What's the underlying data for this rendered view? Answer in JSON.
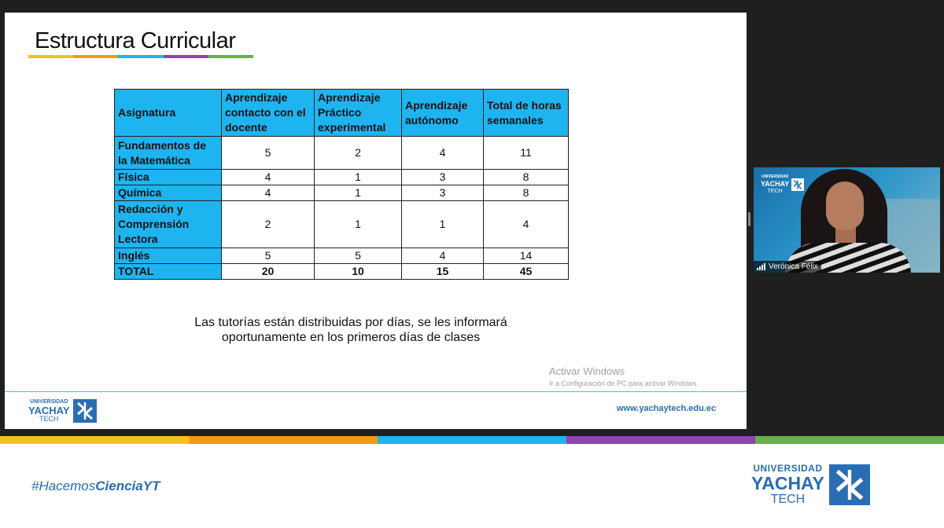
{
  "slide": {
    "title": "Estructura Curricular",
    "title_bar_colors": [
      "#f0c419",
      "#f39c12",
      "#1eb4ef",
      "#8e44ad",
      "#6ab04c"
    ],
    "table": {
      "headers": [
        "Asignatura",
        "Aprendizaje contacto con el docente",
        "Aprendizaje Práctico experimental",
        "Aprendizaje autónomo",
        "Total de horas semanales"
      ],
      "rows": [
        [
          "Fundamentos de la Matemática",
          "5",
          "2",
          "4",
          "11"
        ],
        [
          "Física",
          "4",
          "1",
          "3",
          "8"
        ],
        [
          "Química",
          "4",
          "1",
          "3",
          "8"
        ],
        [
          "Redacción y Comprensión Lectora",
          "2",
          "1",
          "1",
          "4"
        ],
        [
          "Inglés",
          "5",
          "5",
          "4",
          "14"
        ],
        [
          "TOTAL",
          "20",
          "10",
          "15",
          "45"
        ]
      ]
    },
    "note_line1": "Las tutorías están distribuidas por días, se les informará",
    "note_line2": "oportunamente en los primeros días de clases",
    "watermark_line1": "Activar Windows",
    "watermark_line2": "Ir a Configuración de PC para activar Windows.",
    "logo": {
      "line1": "UNIVERSIDAD",
      "line2": "YACHAY",
      "line3": "TECH"
    },
    "url": "www.yachaytech.edu.ec"
  },
  "video": {
    "participant_name": "Verónica Félix",
    "logo": {
      "line1": "UNIVERSIDAD",
      "line2": "YACHAY",
      "line3": "TECH"
    }
  },
  "footer": {
    "hashtag_regular": "#Hacemos",
    "hashtag_bold": "CienciaYT",
    "strip_colors": [
      "#f0c419",
      "#f39c12",
      "#1eb4ef",
      "#8e44ad",
      "#6ab04c"
    ],
    "logo": {
      "line1": "UNIVERSIDAD",
      "line2": "YACHAY",
      "line3": "TECH"
    }
  },
  "brand_color": "#2a6db4",
  "table_header_color": "#1eb4ef"
}
